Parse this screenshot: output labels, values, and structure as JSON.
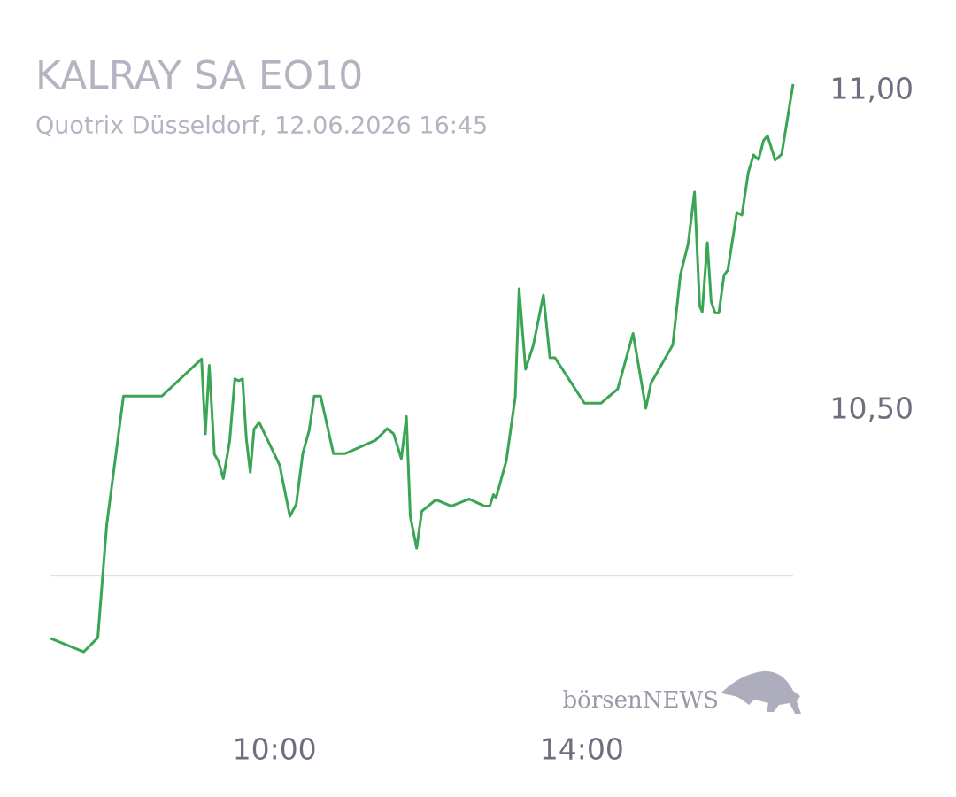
{
  "chart_data": {
    "type": "line",
    "title": "KALRAY SA EO10",
    "subtitle": "Quotrix Düsseldorf, 12.06.2026 16:45",
    "watermark": "börsenNEWS",
    "x": [
      "07:05",
      "07:31",
      "07:42",
      "07:49",
      "08:02",
      "08:32",
      "09:03",
      "09:06",
      "09:09",
      "09:13",
      "09:16",
      "09:20",
      "09:25",
      "09:29",
      "09:32",
      "09:35",
      "09:38",
      "09:41",
      "09:44",
      "09:48",
      "09:53",
      "10:04",
      "10:12",
      "10:17",
      "10:22",
      "10:27",
      "10:31",
      "10:36",
      "10:46",
      "10:55",
      "11:19",
      "11:28",
      "11:33",
      "11:39",
      "11:43",
      "11:46",
      "11:51",
      "11:55",
      "12:06",
      "12:18",
      "12:32",
      "12:44",
      "12:48",
      "12:51",
      "12:53",
      "13:01",
      "13:08",
      "13:11",
      "13:16",
      "13:22",
      "13:30",
      "13:35",
      "13:39",
      "14:02",
      "14:15",
      "14:28",
      "14:40",
      "14:50",
      "14:54",
      "15:11",
      "15:17",
      "15:23",
      "15:28",
      "15:32",
      "15:34",
      "15:38",
      "15:41",
      "15:44",
      "15:47",
      "15:51",
      "15:54",
      "16:01",
      "16:05",
      "16:10",
      "16:14",
      "16:18",
      "16:22",
      "16:25",
      "16:31",
      "16:36",
      "16:45"
    ],
    "series": [
      {
        "name": "KALRAY SA EO10",
        "color": "#3aa655",
        "values": [
          10.143,
          10.122,
          10.144,
          10.321,
          10.522,
          10.522,
          10.58,
          10.463,
          10.57,
          10.431,
          10.421,
          10.393,
          10.452,
          10.549,
          10.546,
          10.549,
          10.455,
          10.403,
          10.47,
          10.481,
          10.46,
          10.414,
          10.334,
          10.353,
          10.432,
          10.468,
          10.522,
          10.522,
          10.432,
          10.432,
          10.453,
          10.471,
          10.463,
          10.424,
          10.49,
          10.334,
          10.284,
          10.342,
          10.36,
          10.35,
          10.361,
          10.35,
          10.35,
          10.368,
          10.363,
          10.421,
          10.521,
          10.69,
          10.564,
          10.601,
          10.68,
          10.582,
          10.582,
          10.511,
          10.511,
          10.533,
          10.62,
          10.503,
          10.542,
          10.602,
          10.712,
          10.76,
          10.841,
          10.663,
          10.654,
          10.762,
          10.67,
          10.652,
          10.652,
          10.711,
          10.719,
          10.809,
          10.805,
          10.872,
          10.899,
          10.892,
          10.922,
          10.929,
          10.891,
          10.9,
          11.01
        ]
      }
    ],
    "reference_line": 10.241,
    "xlim": [
      "07:05",
      "16:45"
    ],
    "xticks": [
      "10:00",
      "14:00"
    ],
    "ylim": [
      10.1,
      11.05
    ],
    "yticks": [
      {
        "value": 11,
        "label": "11,00"
      },
      {
        "value": 10.5,
        "label": "10,50"
      }
    ],
    "grid": false
  }
}
